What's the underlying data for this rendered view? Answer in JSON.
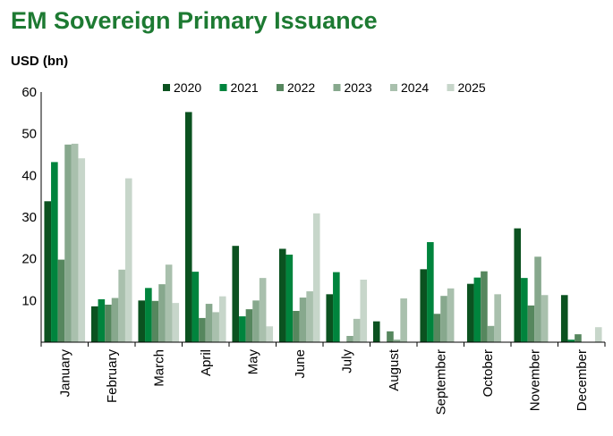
{
  "title": "EM Sovereign Primary Issuance",
  "unit": "USD (bn)",
  "chart_data": {
    "type": "bar",
    "title": "EM Sovereign Primary Issuance",
    "ylabel": "USD (bn)",
    "xlabel": "",
    "ylim": [
      0,
      60
    ],
    "yticks": [
      10,
      20,
      30,
      40,
      50,
      60
    ],
    "grid": false,
    "legend": "top",
    "categories": [
      "January",
      "February",
      "March",
      "April",
      "May",
      "June",
      "July",
      "August",
      "September",
      "October",
      "November",
      "December"
    ],
    "series": [
      {
        "name": "2020",
        "color": "#0b5220",
        "values": [
          33.8,
          8.6,
          10.0,
          55.2,
          23.1,
          22.4,
          11.5,
          5.0,
          17.5,
          14.0,
          27.3,
          11.3
        ]
      },
      {
        "name": "2021",
        "color": "#00843d",
        "values": [
          43.2,
          10.3,
          13.0,
          16.9,
          6.2,
          21.0,
          16.8,
          0,
          24.0,
          15.5,
          15.4,
          0.6
        ]
      },
      {
        "name": "2022",
        "color": "#56875e",
        "values": [
          19.8,
          9.0,
          9.9,
          5.8,
          7.9,
          7.5,
          0,
          2.6,
          6.8,
          17.0,
          8.8,
          1.9
        ]
      },
      {
        "name": "2023",
        "color": "#87a88d",
        "values": [
          47.4,
          10.6,
          13.9,
          9.2,
          10.0,
          10.7,
          1.5,
          0.6,
          11.1,
          3.9,
          20.5,
          0
        ]
      },
      {
        "name": "2024",
        "color": "#a9c0ad",
        "values": [
          47.6,
          17.4,
          18.6,
          7.2,
          15.4,
          12.2,
          5.6,
          10.5,
          12.9,
          11.5,
          11.3,
          0
        ]
      },
      {
        "name": "2025",
        "color": "#c7d6ca",
        "values": [
          44.1,
          39.3,
          9.4,
          11.0,
          3.8,
          30.9,
          15.0,
          0,
          0,
          0,
          0,
          3.6
        ]
      }
    ]
  }
}
